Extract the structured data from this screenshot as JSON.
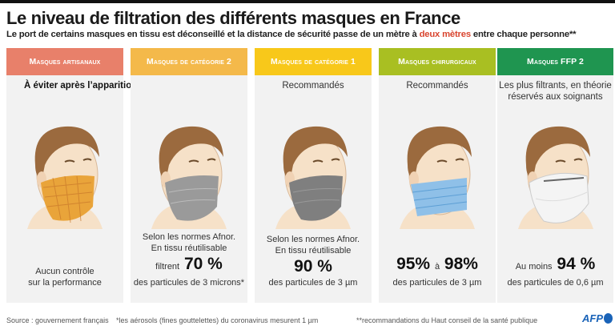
{
  "title": "Le niveau de filtration des différents masques en France",
  "subtitle": {
    "before": "Le port de certains masques en tissu est déconseillé et la distance de sécurité passe de un mètre à ",
    "highlight": "deux mètres",
    "after": " entre chaque personne**"
  },
  "colors": {
    "highlight": "#d9452f",
    "panel": "#f2f2f2"
  },
  "columns": [
    {
      "header": "Masques artisanaux",
      "color": "#e8806a",
      "note": "À éviter après l’apparition de nouveaux variants",
      "mask_icon": "fabric-pattern-mask-icon",
      "mask_color": "#e9a43a",
      "info_line1": "Aucun contrôle",
      "info_line2": "sur la performance"
    },
    {
      "header": "Masques de catégorie 2",
      "color": "#f4b94a",
      "note": "",
      "mask_icon": "grey-fabric-mask-icon",
      "mask_color": "#9a9a9a",
      "info_line1": "Selon les normes Afnor.",
      "info_line2": "En tissu réutilisable",
      "prefix": "filtrent",
      "value": "70 %",
      "suffix": "des particules de 3 microns*"
    },
    {
      "header": "Masques de catégorie 1",
      "color": "#f8c81a",
      "note": "Recommandés",
      "mask_icon": "dark-grey-fabric-mask-icon",
      "mask_color": "#7f7f7f",
      "info_line1": "Selon les normes Afnor.",
      "info_line2": "En tissu réutilisable",
      "value": "90 %",
      "suffix": "des particules de 3 µm"
    },
    {
      "header": "Masques chirurgicaux",
      "color": "#a9bf22",
      "note": "Recommandés",
      "mask_icon": "surgical-mask-icon",
      "mask_color": "#8fc0e8",
      "value": "95%",
      "mid": "à",
      "value2": "98%",
      "suffix": "des particules de 3 µm"
    },
    {
      "header": "Masques FFP 2",
      "color": "#1f9550",
      "note": "Les plus filtrants, en théorie",
      "note2": "réservés aux soignants",
      "mask_icon": "ffp2-mask-icon",
      "mask_color": "#f4f4f4",
      "prefix": "Au moins",
      "value": "94 %",
      "suffix": "des particules de 0,6 µm"
    }
  ],
  "footer": {
    "source": "Source : gouvernement français",
    "note1": "*les aérosols (fines gouttelettes) du coronavirus mesurent 1 µm",
    "note2": "**recommandations du Haut conseil de la santé publique",
    "logo": "AFP"
  }
}
